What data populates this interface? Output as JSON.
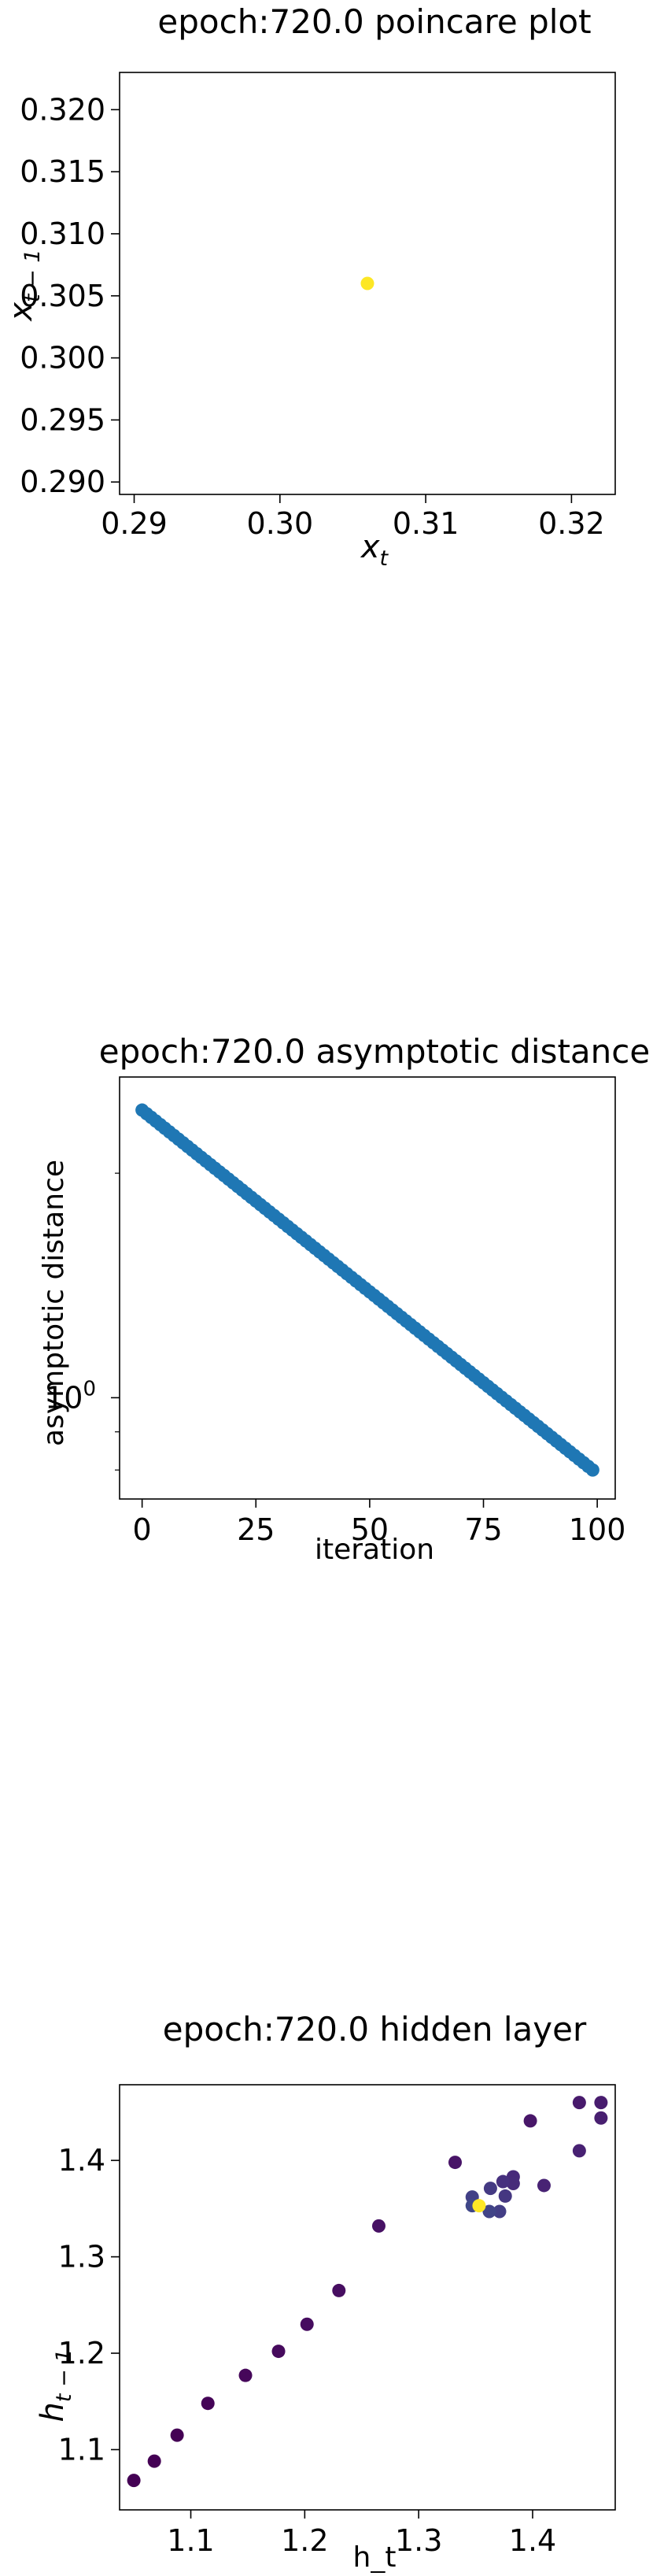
{
  "chart_data": [
    {
      "type": "scatter",
      "title": "epoch:720.0 poincare plot",
      "xlabel": "x_t",
      "ylabel": "x_{t-1}",
      "xlim": [
        0.289,
        0.323
      ],
      "ylim": [
        0.289,
        0.323
      ],
      "xticks": [
        {
          "value": 0.29,
          "label": "0.29"
        },
        {
          "value": 0.3,
          "label": "0.30"
        },
        {
          "value": 0.31,
          "label": "0.31"
        },
        {
          "value": 0.32,
          "label": "0.32"
        }
      ],
      "yticks": [
        {
          "value": 0.29,
          "label": "0.290"
        },
        {
          "value": 0.295,
          "label": "0.295"
        },
        {
          "value": 0.3,
          "label": "0.300"
        },
        {
          "value": 0.305,
          "label": "0.305"
        },
        {
          "value": 0.31,
          "label": "0.310"
        },
        {
          "value": 0.315,
          "label": "0.315"
        },
        {
          "value": 0.32,
          "label": "0.320"
        }
      ],
      "grid": false,
      "colors": {
        "point": "#fde725",
        "axes": "#000000"
      },
      "points": [
        {
          "x": 0.306,
          "y": 0.306
        }
      ]
    },
    {
      "type": "scatter",
      "title": "epoch:720.0 asymptotic distance",
      "xlabel": "iteration",
      "ylabel": "asymptotic distance",
      "yscale": "log",
      "xlim": [
        -4.95,
        103.95
      ],
      "ylim": [
        0.7315,
        2.6915
      ],
      "xticks": [
        {
          "value": 0,
          "label": "0"
        },
        {
          "value": 25,
          "label": "25"
        },
        {
          "value": 50,
          "label": "50"
        },
        {
          "value": 75,
          "label": "75"
        },
        {
          "value": 100,
          "label": "100"
        }
      ],
      "yticks": [
        {
          "value": 1.0,
          "label": "10^0",
          "base": "10",
          "exponent": "0"
        }
      ],
      "grid": false,
      "colors": {
        "point": "#1f77b4",
        "axes": "#000000"
      },
      "series": [
        {
          "x_start": 0,
          "x_end": 99,
          "x_step": 1,
          "y_start": 2.43,
          "y_end": 0.8,
          "trend": "exponential decay (straight line on log axis)"
        }
      ]
    },
    {
      "type": "scatter",
      "title": "epoch:720.0 hidden layer",
      "xlabel": "h_t",
      "ylabel": "h_{t-1}",
      "xlim": [
        1.0375,
        1.4725
      ],
      "ylim": [
        1.0375,
        1.4785
      ],
      "xticks": [
        {
          "value": 1.1,
          "label": "1.1"
        },
        {
          "value": 1.2,
          "label": "1.2"
        },
        {
          "value": 1.3,
          "label": "1.3"
        },
        {
          "value": 1.4,
          "label": "1.4"
        }
      ],
      "yticks": [
        {
          "value": 1.1,
          "label": "1.1"
        },
        {
          "value": 1.2,
          "label": "1.2"
        },
        {
          "value": 1.3,
          "label": "1.3"
        },
        {
          "value": 1.4,
          "label": "1.4"
        }
      ],
      "grid": false,
      "colors": {
        "axes": "#000000",
        "colormap": "viridis"
      },
      "points": [
        {
          "x": 1.05,
          "y": 1.068,
          "color": "#440154"
        },
        {
          "x": 1.068,
          "y": 1.088,
          "color": "#440154"
        },
        {
          "x": 1.088,
          "y": 1.115,
          "color": "#440154"
        },
        {
          "x": 1.115,
          "y": 1.148,
          "color": "#450457"
        },
        {
          "x": 1.148,
          "y": 1.177,
          "color": "#46075a"
        },
        {
          "x": 1.177,
          "y": 1.202,
          "color": "#460a5d"
        },
        {
          "x": 1.202,
          "y": 1.23,
          "color": "#460c5f"
        },
        {
          "x": 1.23,
          "y": 1.265,
          "color": "#470e61"
        },
        {
          "x": 1.265,
          "y": 1.332,
          "color": "#471164"
        },
        {
          "x": 1.332,
          "y": 1.398,
          "color": "#481467"
        },
        {
          "x": 1.398,
          "y": 1.441,
          "color": "#481769"
        },
        {
          "x": 1.441,
          "y": 1.46,
          "color": "#481a6c"
        },
        {
          "x": 1.46,
          "y": 1.46,
          "color": "#481c6e"
        },
        {
          "x": 1.46,
          "y": 1.444,
          "color": "#481f70"
        },
        {
          "x": 1.441,
          "y": 1.41,
          "color": "#482173"
        },
        {
          "x": 1.41,
          "y": 1.374,
          "color": "#482374"
        },
        {
          "x": 1.383,
          "y": 1.383,
          "color": "#472a7a"
        },
        {
          "x": 1.383,
          "y": 1.376,
          "color": "#472c7a"
        },
        {
          "x": 1.374,
          "y": 1.378,
          "color": "#46307e"
        },
        {
          "x": 1.376,
          "y": 1.363,
          "color": "#453781"
        },
        {
          "x": 1.363,
          "y": 1.371,
          "color": "#443a83"
        },
        {
          "x": 1.371,
          "y": 1.347,
          "color": "#433e85"
        },
        {
          "x": 1.347,
          "y": 1.362,
          "color": "#424086"
        },
        {
          "x": 1.362,
          "y": 1.347,
          "color": "#414487"
        },
        {
          "x": 1.347,
          "y": 1.353,
          "color": "#3f4788"
        },
        {
          "x": 1.353,
          "y": 1.353,
          "color": "#fde725"
        }
      ]
    }
  ]
}
